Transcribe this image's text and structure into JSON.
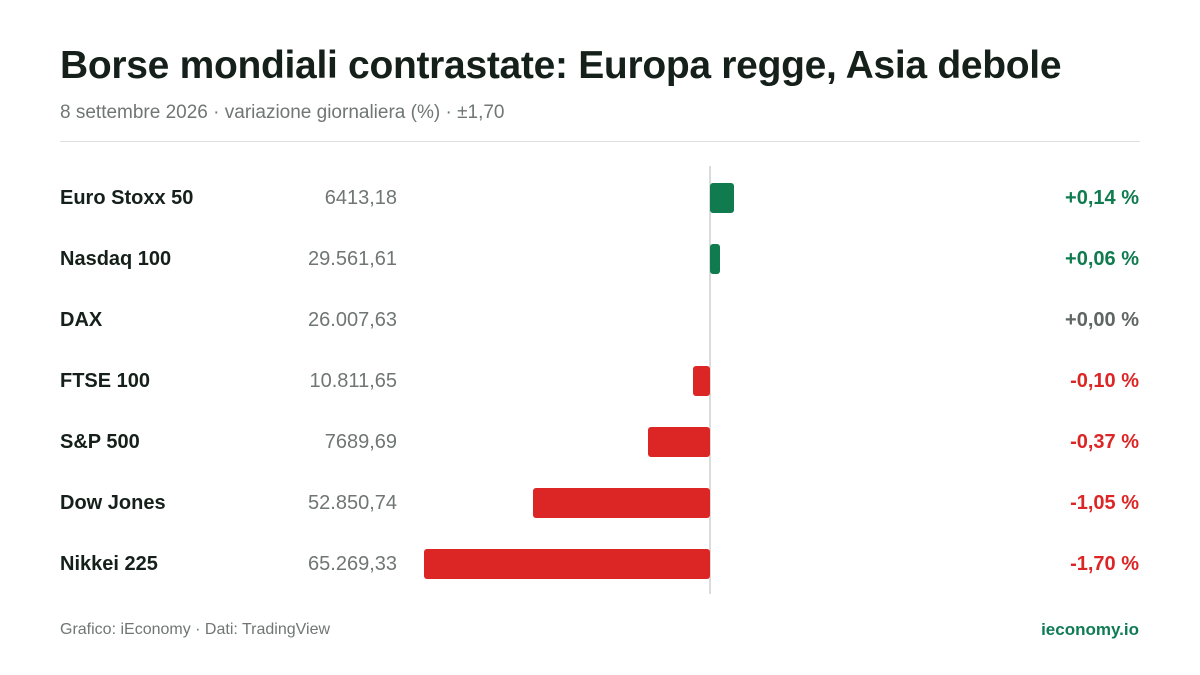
{
  "header": {
    "title": "Borse mondiali contrastate: Europa regge, Asia debole",
    "subtitle": "8 settembre 2026 · variazione giornaliera (%) · ±1,70"
  },
  "footer": {
    "credit": "Grafico: iEconomy · Dati: TradingView",
    "site": "ieconomy.io"
  },
  "colors": {
    "positive": "#0f7b4f",
    "negative": "#dc2626",
    "neutral": "#5f6663"
  },
  "chart_data": {
    "type": "bar",
    "orientation": "horizontal",
    "xlim": [
      -1.7,
      1.7
    ],
    "categories": [
      "Euro Stoxx 50",
      "Nasdaq 100",
      "DAX",
      "FTSE 100",
      "S&P 500",
      "Dow Jones",
      "Nikkei 225"
    ],
    "index_levels": [
      "6413,18",
      "29.561,61",
      "26.007,63",
      "10.811,65",
      "7689,69",
      "52.850,74",
      "65.269,33"
    ],
    "values": [
      0.14,
      0.06,
      0.0,
      -0.1,
      -0.37,
      -1.05,
      -1.7
    ],
    "value_labels": [
      "+0,14 %",
      "+0,06 %",
      "+0,00 %",
      "-0,10 %",
      "-0,37 %",
      "-1,05 %",
      "-1,70 %"
    ]
  }
}
